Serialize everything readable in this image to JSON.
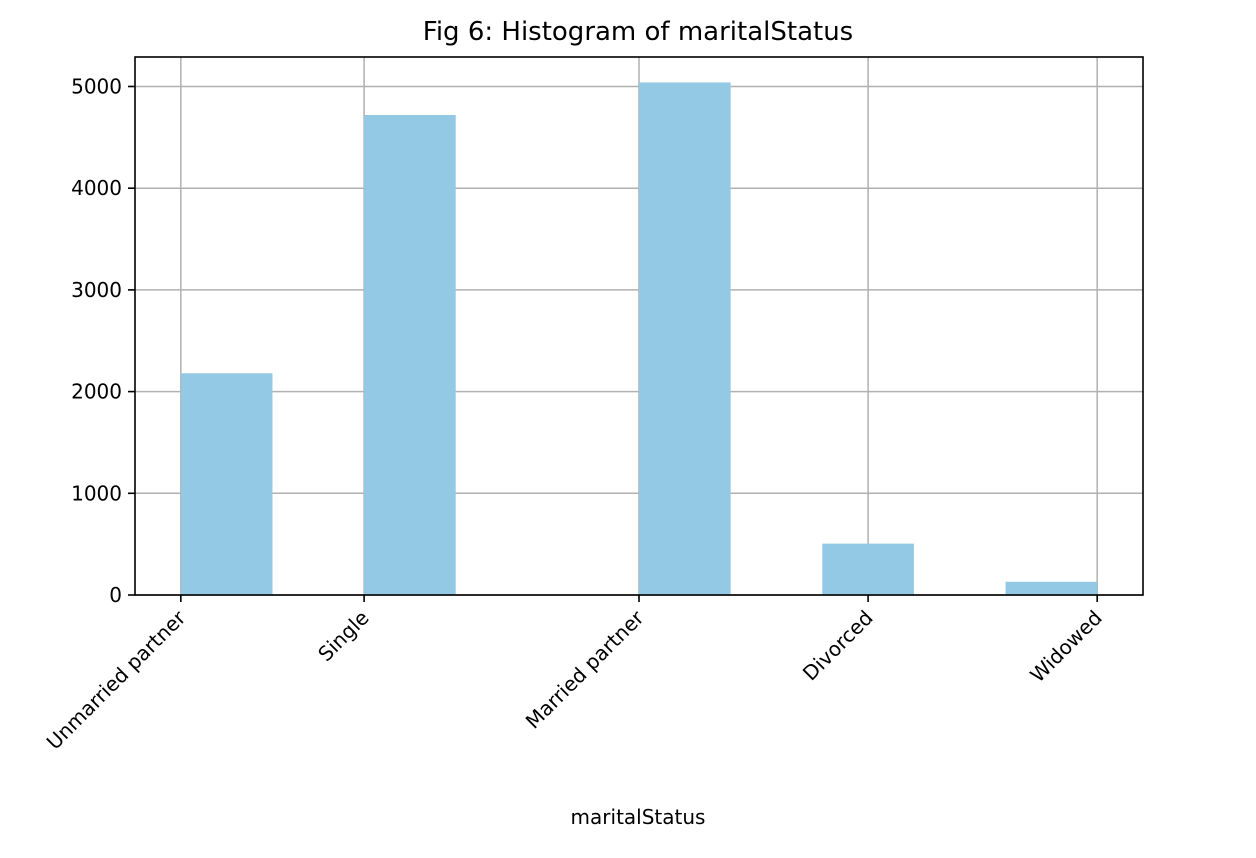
{
  "chart_data": {
    "type": "bar",
    "title": "Fig 6: Histogram of maritalStatus",
    "xlabel": "maritalStatus",
    "ylabel": "",
    "categories": [
      "Unmarried partner",
      "Single",
      "Married partner",
      "Divorced",
      "Widowed"
    ],
    "tick_positions": [
      0,
      1,
      2.5,
      3.75,
      5
    ],
    "bars": [
      {
        "x_start": 0,
        "x_end": 0.5,
        "value": 2180
      },
      {
        "x_start": 1,
        "x_end": 1.5,
        "value": 4720
      },
      {
        "x_start": 2.5,
        "x_end": 3,
        "value": 5040
      },
      {
        "x_start": 3.5,
        "x_end": 4,
        "value": 505
      },
      {
        "x_start": 4.5,
        "x_end": 5,
        "value": 130
      }
    ],
    "xlim": [
      -0.25,
      5.25
    ],
    "ylim": [
      0,
      5290
    ],
    "yticks": [
      0,
      1000,
      2000,
      3000,
      4000,
      5000
    ],
    "bar_color": "#94c9e6",
    "grid": true
  }
}
